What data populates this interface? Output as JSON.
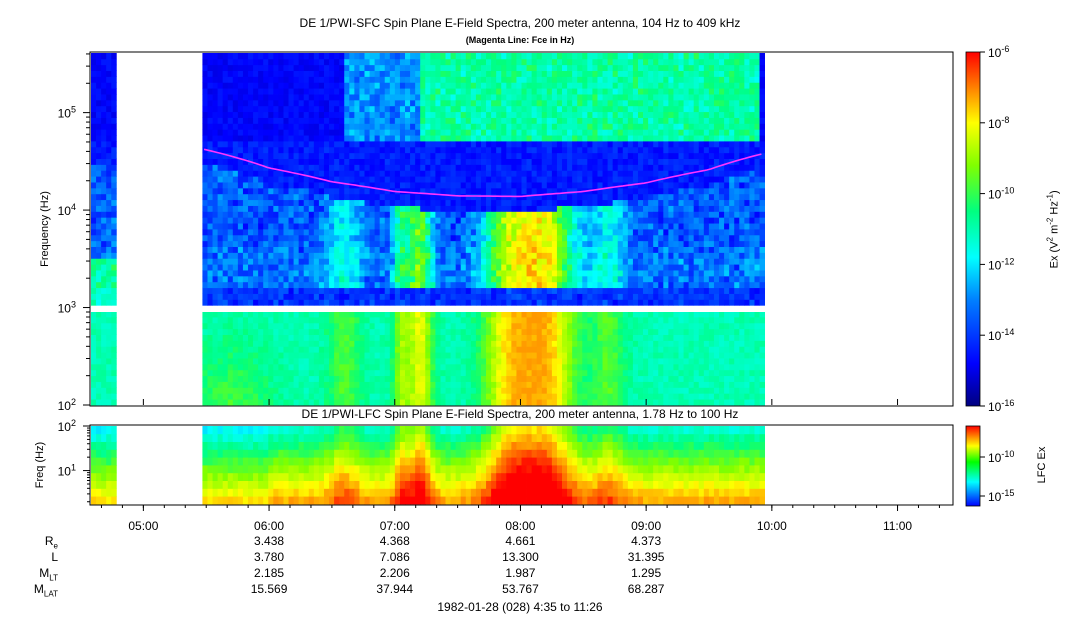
{
  "chart_data": [
    {
      "type": "heatmap",
      "title": "DE 1/PWI-SFC  Spin Plane E-Field Spectra, 200 meter antenna, 104 Hz to 409 kHz",
      "subtitle": "(Magenta Line: Fce in Hz)",
      "ylabel": "Frequency (Hz)",
      "yscale": "log",
      "ylim": [
        100,
        409000
      ],
      "y_ticks": [
        {
          "base": "10",
          "exp": "2",
          "value": 100
        },
        {
          "base": "10",
          "exp": "3",
          "value": 1000
        },
        {
          "base": "10",
          "exp": "4",
          "value": 10000
        },
        {
          "base": "10",
          "exp": "5",
          "value": 100000
        }
      ],
      "colorbar": {
        "label_prefix": "Ex (V",
        "label_sup1": "2",
        "label_mid": " m",
        "label_sup2": "-2",
        "label_mid2": " Hz",
        "label_sup3": "-1",
        "label_suffix": ")",
        "scale": "log",
        "range": [
          1e-16,
          1e-06
        ],
        "ticks": [
          {
            "base": "10",
            "exp": "-6",
            "value": 1e-06
          },
          {
            "base": "10",
            "exp": "-8",
            "value": 1e-08
          },
          {
            "base": "10",
            "exp": "-10",
            "value": 1e-10
          },
          {
            "base": "10",
            "exp": "-12",
            "value": 1e-12
          },
          {
            "base": "10",
            "exp": "-14",
            "value": 1e-14
          },
          {
            "base": "10",
            "exp": "-16",
            "value": 1e-16
          }
        ]
      },
      "magenta_line": {
        "name": "Fce",
        "color": "#ff33ff",
        "points": [
          {
            "t": "05:29",
            "hz": 42000
          },
          {
            "t": "06:00",
            "hz": 27000
          },
          {
            "t": "06:30",
            "hz": 19500
          },
          {
            "t": "07:00",
            "hz": 15500
          },
          {
            "t": "07:30",
            "hz": 14000
          },
          {
            "t": "08:00",
            "hz": 13800
          },
          {
            "t": "08:30",
            "hz": 15500
          },
          {
            "t": "09:00",
            "hz": 19000
          },
          {
            "t": "09:30",
            "hz": 26000
          },
          {
            "t": "09:56",
            "hz": 38000
          }
        ]
      }
    },
    {
      "type": "heatmap",
      "title": "DE 1/PWI-LFC  Spin Plane E-Field Spectra, 200 meter antenna, 1.78 Hz to 100 Hz",
      "ylabel": "Freq (Hz)",
      "yscale": "log",
      "ylim": [
        1.78,
        100
      ],
      "y_ticks": [
        {
          "base": "10",
          "exp": "1",
          "value": 10
        },
        {
          "base": "10",
          "exp": "2",
          "value": 100
        }
      ],
      "colorbar": {
        "label": "LFC Ex",
        "scale": "log",
        "ticks": [
          {
            "base": "10",
            "exp": "-10",
            "value": 1e-10
          },
          {
            "base": "10",
            "exp": "-15",
            "value": 1e-15
          }
        ]
      }
    }
  ],
  "time_axis": {
    "range": [
      "04:35",
      "11:26"
    ],
    "ticks": [
      "05:00",
      "06:00",
      "07:00",
      "08:00",
      "09:00",
      "10:00",
      "11:00"
    ],
    "data_gaps": [
      [
        "04:48",
        "05:29"
      ],
      [
        "09:56",
        "11:26"
      ]
    ]
  },
  "ephemeris": {
    "rows": [
      {
        "label_main": "R",
        "label_sub": "e",
        "values": [
          "3.438",
          "4.368",
          "4.661",
          "4.373"
        ]
      },
      {
        "label_main": "L",
        "label_sub": "",
        "values": [
          "3.780",
          "7.086",
          "13.300",
          "31.395"
        ]
      },
      {
        "label_main": "M",
        "label_sub": "LT",
        "values": [
          "2.185",
          "2.206",
          "1.987",
          "1.295"
        ]
      },
      {
        "label_main": "M",
        "label_sub": "LAT",
        "values": [
          "15.569",
          "37.944",
          "53.767",
          "68.287"
        ]
      }
    ],
    "columns_at": [
      "06:00",
      "07:00",
      "08:00",
      "09:00"
    ]
  },
  "footer": {
    "date_range": "1982-01-28 (028) 4:35 to 11:26"
  },
  "colors": {
    "colormap": [
      "#00007f",
      "#0000ff",
      "#0080ff",
      "#00ffff",
      "#00ff80",
      "#80ff00",
      "#ffff00",
      "#ff8000",
      "#ff0000"
    ],
    "fce_line": "#ff33ff"
  }
}
